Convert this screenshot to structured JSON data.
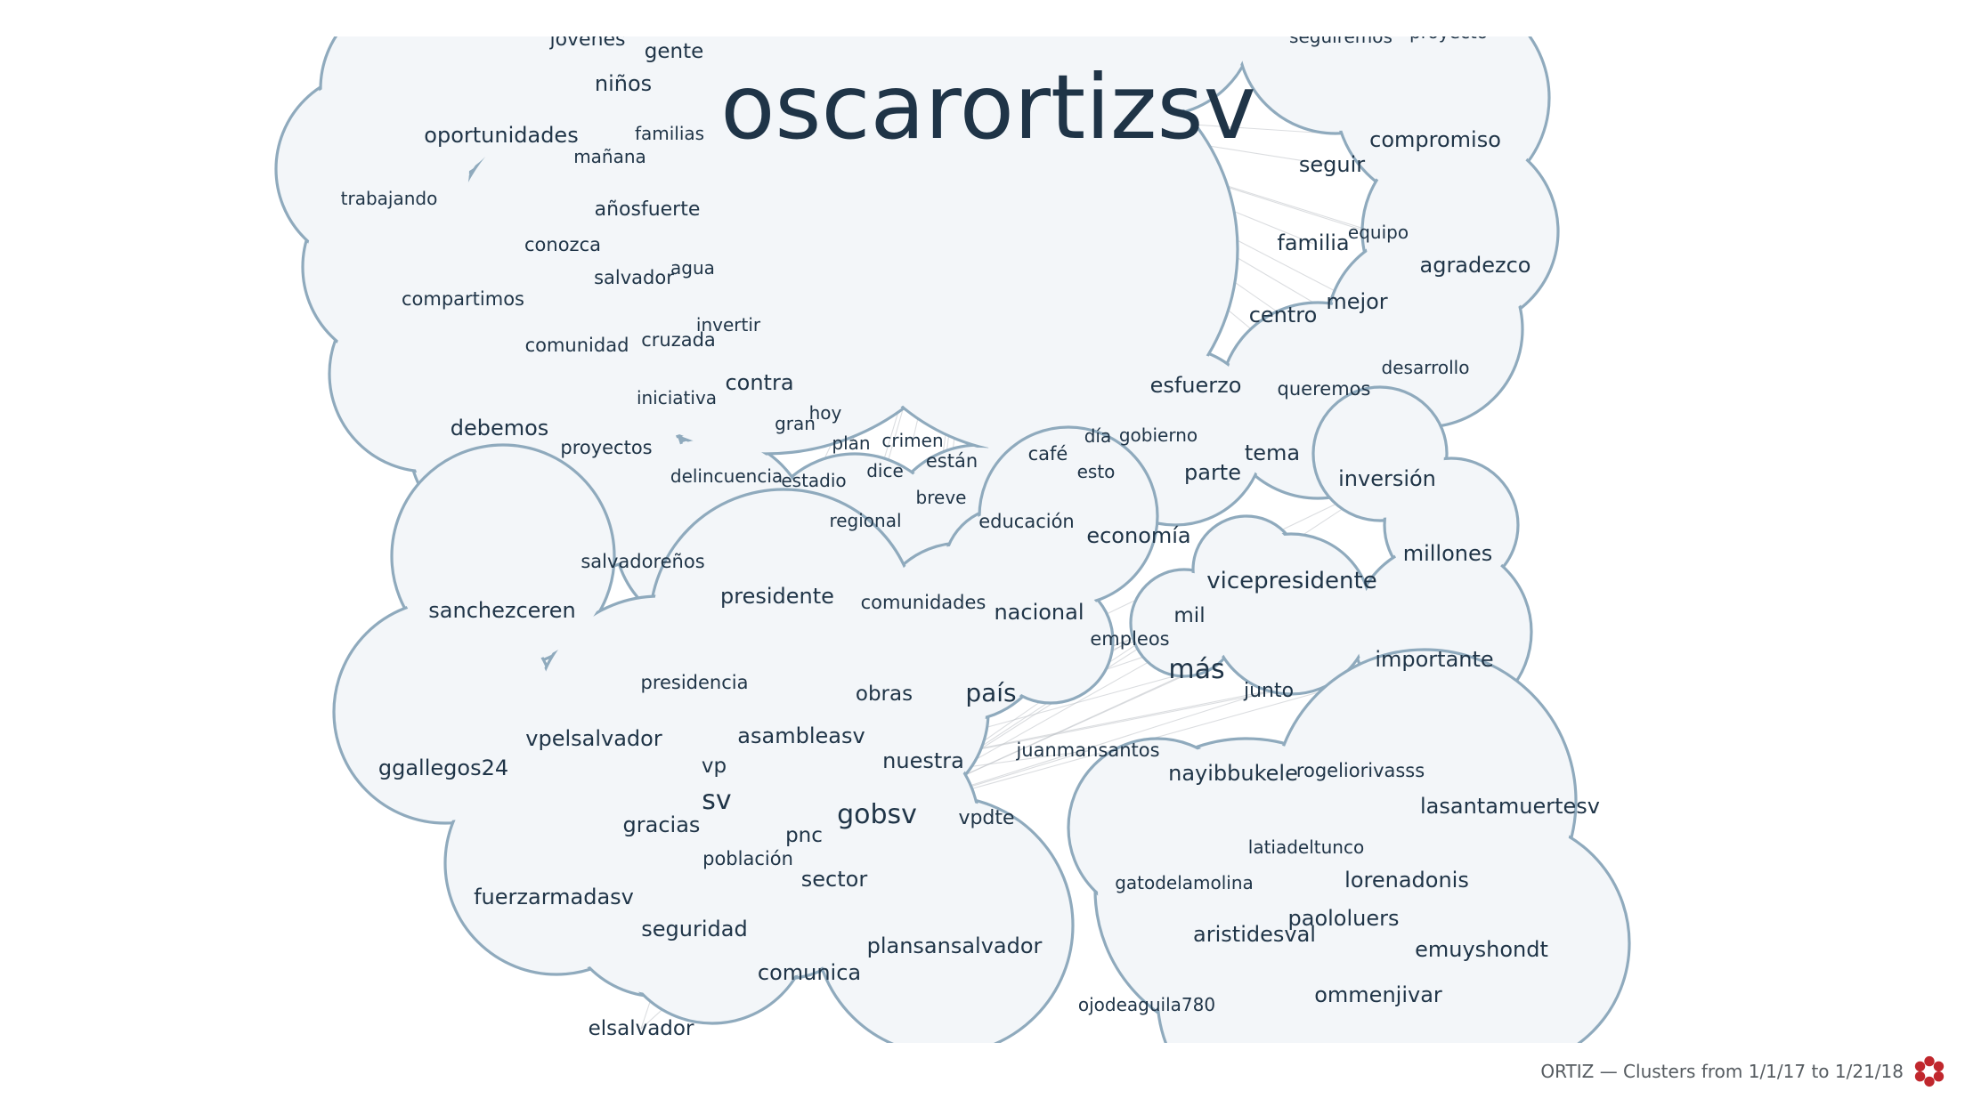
{
  "footer": {
    "caption": "ORTIZ — Clusters from 1/1/17 to 1/21/18",
    "logo_icon": "red-flower-icon",
    "logo_color": "#c0272d"
  },
  "colors": {
    "cloud_fill": "#f3f6f9",
    "cloud_stroke": "#8faabd",
    "word": "#1f3447",
    "edge": "#bfc3c8"
  },
  "hub_word": "oscarortizsv",
  "clusters": [
    {
      "name": "oscarortizsv",
      "words": [
        "jóvenes",
        "gente",
        "niños",
        "oportunidades",
        "familias",
        "mañana",
        "trabajando",
        "añosfuerte",
        "conozca",
        "salvador",
        "agua",
        "compartimos",
        "comunidad",
        "cruzada",
        "invertir",
        "contra",
        "iniciativa",
        "debemos",
        "proyectos",
        "hoy",
        "gran",
        "plan",
        "crimen",
        "delincuencia",
        "estadio",
        "dice",
        "están",
        "café",
        "día",
        "gobierno",
        "esto",
        "breve",
        "regional",
        "educación",
        "economía",
        "seguiremos",
        "proyecto",
        "compromiso",
        "seguir",
        "familia",
        "equipo",
        "agradezco",
        "mejor",
        "centro",
        "desarrollo",
        "esfuerzo",
        "queremos",
        "tema",
        "parte",
        "salvadoreños",
        "comunidades",
        "nacional"
      ]
    },
    {
      "name": "presidencia",
      "words": [
        "presidente",
        "presidencia",
        "obras",
        "asambleasv",
        "nuestra",
        "país",
        "vp",
        "sv",
        "gobsv",
        "pnc",
        "gracias",
        "población",
        "sector",
        "vpelsalvador",
        "sanchezceren",
        "ggallegos24",
        "fuerzarmadasv",
        "seguridad",
        "elsalvador",
        "comunica",
        "plansansalvador",
        "vpdte",
        "juanmansantos",
        "vicepresidente",
        "mil",
        "empleos",
        "más",
        "junto",
        "inversión",
        "millones",
        "importante"
      ]
    },
    {
      "name": "nayibbukele",
      "words": [
        "nayibbukele",
        "rogeliorivasss",
        "lasantamuertesv",
        "latiadeltunco",
        "gatodelamolina",
        "lorenadonis",
        "aristidesval",
        "paololuers",
        "emuyshondt",
        "ojodeaguila780",
        "ommenjivar"
      ]
    }
  ]
}
